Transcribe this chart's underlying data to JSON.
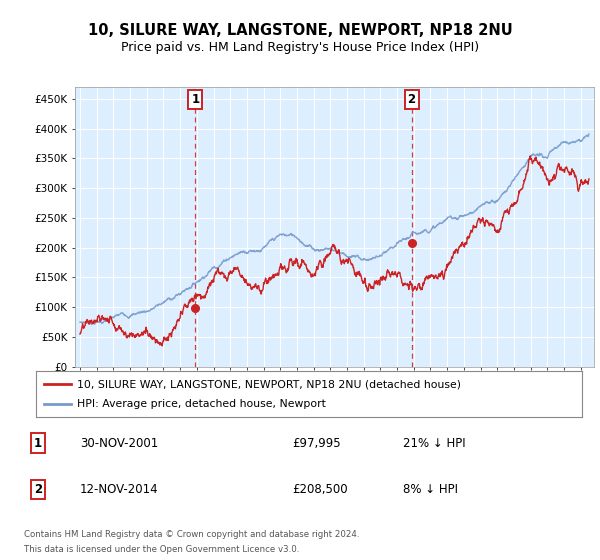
{
  "title": "10, SILURE WAY, LANGSTONE, NEWPORT, NP18 2NU",
  "subtitle": "Price paid vs. HM Land Registry's House Price Index (HPI)",
  "title_fontsize": 10.5,
  "subtitle_fontsize": 9,
  "background_color": "#ffffff",
  "plot_bg_color": "#ddeeff",
  "grid_color": "#ffffff",
  "hpi_color": "#7799cc",
  "price_color": "#cc2222",
  "ylabel_ticks": [
    "£0",
    "£50K",
    "£100K",
    "£150K",
    "£200K",
    "£250K",
    "£300K",
    "£350K",
    "£400K",
    "£450K"
  ],
  "ytick_values": [
    0,
    50000,
    100000,
    150000,
    200000,
    250000,
    300000,
    350000,
    400000,
    450000
  ],
  "ylim": [
    0,
    470000
  ],
  "xlim_start": 1994.7,
  "xlim_end": 2025.8,
  "sale1_x": 2001.917,
  "sale1_y": 97995,
  "sale2_x": 2014.875,
  "sale2_y": 208500,
  "legend_line1": "10, SILURE WAY, LANGSTONE, NEWPORT, NP18 2NU (detached house)",
  "legend_line2": "HPI: Average price, detached house, Newport",
  "sale1_date": "30-NOV-2001",
  "sale1_price": "£97,995",
  "sale1_hpi": "21% ↓ HPI",
  "sale2_date": "12-NOV-2014",
  "sale2_price": "£208,500",
  "sale2_hpi": "8% ↓ HPI",
  "footer1": "Contains HM Land Registry data © Crown copyright and database right 2024.",
  "footer2": "This data is licensed under the Open Government Licence v3.0."
}
